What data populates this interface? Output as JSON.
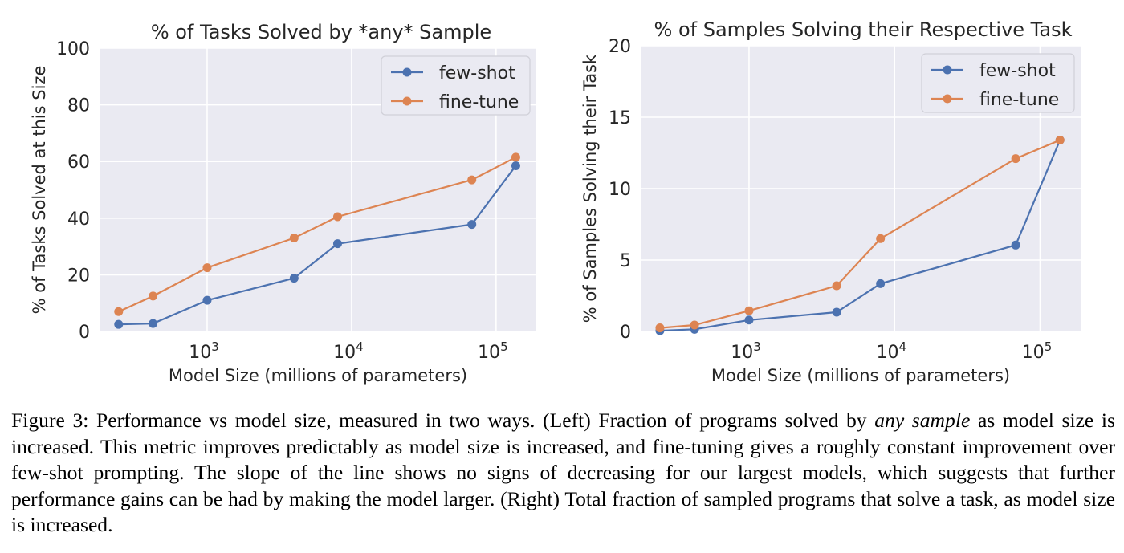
{
  "chart_data": [
    {
      "type": "line",
      "title": "% of Tasks Solved by *any* Sample",
      "xlabel": "Model Size (millions of parameters)",
      "ylabel": "% of Tasks Solved at this Size",
      "xscale": "log",
      "xlim": [
        180,
        190000
      ],
      "ylim": [
        0,
        100
      ],
      "yticks": [
        0,
        20,
        40,
        60,
        80,
        100
      ],
      "xticks": [
        {
          "value": 1000,
          "base": "10",
          "exp": "3"
        },
        {
          "value": 10000,
          "base": "10",
          "exp": "4"
        },
        {
          "value": 100000,
          "base": "10",
          "exp": "5"
        }
      ],
      "grid": true,
      "legend_position": "top-right",
      "background": "#EAEAF2",
      "series": [
        {
          "name": "few-shot",
          "color": "#4C72B0",
          "x": [
            244,
            422,
            1000,
            4000,
            8000,
            68000,
            137000
          ],
          "y": [
            2.5,
            2.8,
            11.0,
            18.8,
            31.0,
            37.8,
            58.5
          ]
        },
        {
          "name": "fine-tune",
          "color": "#DD8452",
          "x": [
            244,
            422,
            1000,
            4000,
            8000,
            68000,
            137000
          ],
          "y": [
            7.0,
            12.5,
            22.5,
            33.0,
            40.5,
            53.5,
            61.5
          ]
        }
      ]
    },
    {
      "type": "line",
      "title": "% of Samples Solving their Respective Task",
      "xlabel": "Model Size (millions of parameters)",
      "ylabel": "% of Samples Solving their Task",
      "xscale": "log",
      "xlim": [
        180,
        190000
      ],
      "ylim": [
        0,
        20
      ],
      "yticks": [
        0,
        5,
        10,
        15,
        20
      ],
      "xticks": [
        {
          "value": 1000,
          "base": "10",
          "exp": "3"
        },
        {
          "value": 10000,
          "base": "10",
          "exp": "4"
        },
        {
          "value": 100000,
          "base": "10",
          "exp": "5"
        }
      ],
      "grid": true,
      "legend_position": "top-right",
      "background": "#EAEAF2",
      "series": [
        {
          "name": "few-shot",
          "color": "#4C72B0",
          "x": [
            244,
            422,
            1000,
            4000,
            8000,
            68000,
            137000
          ],
          "y": [
            0.05,
            0.15,
            0.8,
            1.35,
            3.35,
            6.05,
            13.4
          ]
        },
        {
          "name": "fine-tune",
          "color": "#DD8452",
          "x": [
            244,
            422,
            1000,
            4000,
            8000,
            68000,
            137000
          ],
          "y": [
            0.25,
            0.45,
            1.45,
            3.2,
            6.5,
            12.1,
            13.4
          ]
        }
      ]
    }
  ],
  "caption": {
    "part1": "Figure 3: Performance vs model size, measured in two ways. (Left) Fraction of programs solved by ",
    "emph": "any sample",
    "part2": " as model size is increased. This metric improves predictably as model size is increased, and fine-tuning gives a roughly constant improvement over few-shot prompting. The slope of the line shows no signs of decreasing for our largest models, which suggests that further performance gains can be had by making the model larger. (Right) Total fraction of sampled programs that solve a task, as model size is increased."
  }
}
